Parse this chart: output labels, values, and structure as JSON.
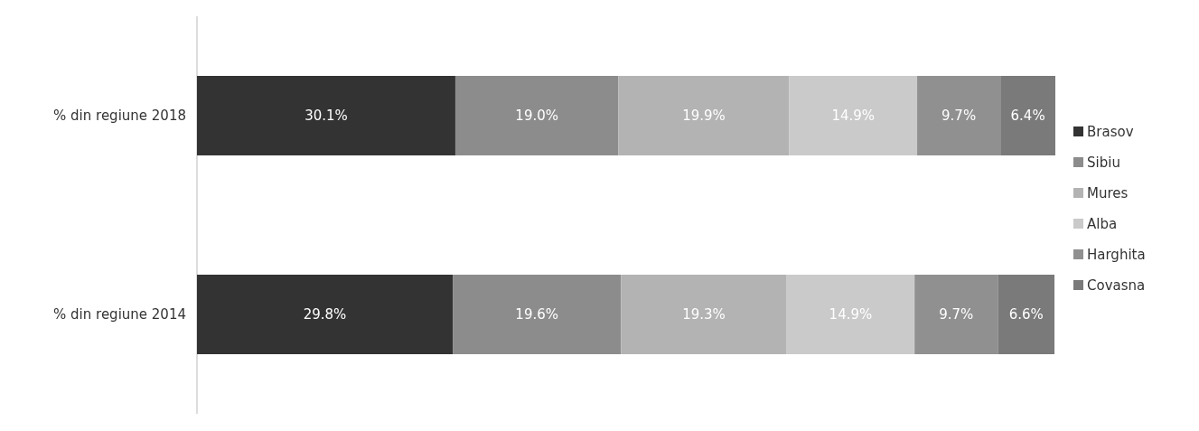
{
  "chart_data": {
    "type": "bar",
    "orientation": "horizontal",
    "stacked": true,
    "categories": [
      "% din regiune 2018",
      "% din regiune 2014"
    ],
    "series": [
      {
        "name": "Brasov",
        "color": "#333333",
        "values": [
          30.1,
          29.8
        ],
        "value_labels": [
          "30.1%",
          "29.8%"
        ]
      },
      {
        "name": "Sibiu",
        "color": "#8c8c8c",
        "values": [
          19.0,
          19.6
        ],
        "value_labels": [
          "19.0%",
          "19.6%"
        ]
      },
      {
        "name": "Mures",
        "color": "#b3b3b3",
        "values": [
          19.9,
          19.3
        ],
        "value_labels": [
          "19.9%",
          "19.3%"
        ]
      },
      {
        "name": "Alba",
        "color": "#cacaca",
        "values": [
          14.9,
          14.9
        ],
        "value_labels": [
          "14.9%",
          "14.9%"
        ]
      },
      {
        "name": "Harghita",
        "color": "#909090",
        "values": [
          9.7,
          9.7
        ],
        "value_labels": [
          "9.7%",
          "9.7%"
        ]
      },
      {
        "name": "Covasna",
        "color": "#7a7a7a",
        "values": [
          6.4,
          6.6
        ],
        "value_labels": [
          "6.4%",
          "6.6%"
        ]
      }
    ],
    "xlim": [
      0,
      100
    ],
    "tick_labels": "y",
    "legend": "right",
    "grid": false
  }
}
